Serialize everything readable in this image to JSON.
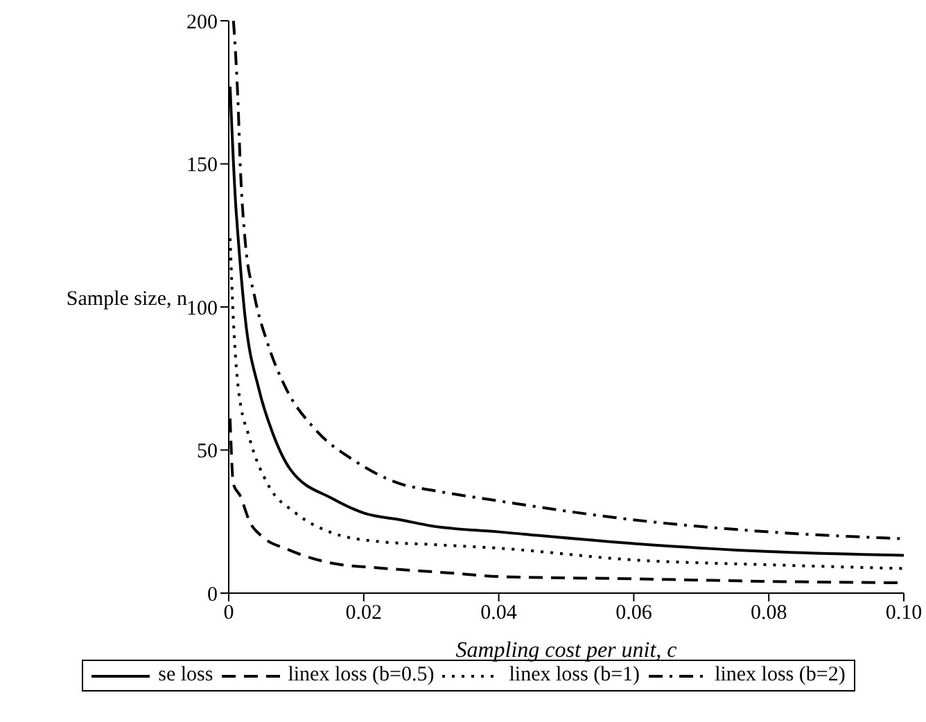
{
  "chart_data": {
    "type": "line",
    "xlabel": "Sampling cost per unit,  c",
    "ylabel": "Sample size, n",
    "xlim": [
      0,
      0.1
    ],
    "ylim": [
      0,
      200
    ],
    "xticks": [
      0,
      0.02,
      0.04,
      0.06,
      0.08,
      {
        "value": 0.1,
        "label": "0.10"
      }
    ],
    "yticks": [
      0,
      50,
      100,
      150,
      200
    ],
    "grid": false,
    "legend": "bottom",
    "marker": "none",
    "series": [
      {
        "name": "se loss",
        "color": "#000000",
        "line_style": "solid",
        "x": [
          0.0002,
          0.001,
          0.0014,
          0.0024,
          0.0045,
          0.0065,
          0.0092,
          0.0154,
          0.02,
          0.0257,
          0.03,
          0.04,
          0.06,
          0.08,
          0.1
        ],
        "values": [
          177,
          137,
          124,
          97,
          71,
          56,
          43,
          33,
          28,
          25.5,
          23.5,
          21.4,
          17.3,
          14.5,
          13.2
        ]
      },
      {
        "name": "linex loss (b=0.5)",
        "color": "#000000",
        "line_style": "dashed",
        "x": [
          0.0002,
          0.0007,
          0.0017,
          0.0031,
          0.0051,
          0.0086,
          0.0154,
          0.0223,
          0.0325,
          0.04,
          0.06,
          0.08,
          0.1
        ],
        "values": [
          61,
          38,
          34,
          25,
          19.5,
          15.4,
          10.4,
          8.8,
          7.1,
          5.8,
          5,
          4.1,
          3.6
        ]
      },
      {
        "name": "linex loss (b=1)",
        "color": "#000000",
        "line_style": "dotted",
        "x": [
          0.0002,
          0.0007,
          0.0014,
          0.0031,
          0.0058,
          0.0099,
          0.0154,
          0.0223,
          0.03,
          0.04,
          0.06,
          0.08,
          0.1
        ],
        "values": [
          124,
          95,
          72,
          54,
          38,
          28,
          21,
          18,
          17,
          15.7,
          11.6,
          9.9,
          8.6
        ]
      },
      {
        "name": "linex loss (b=2)",
        "color": "#000000",
        "line_style": "dashdot",
        "x": [
          0.0007,
          0.0014,
          0.0017,
          0.0024,
          0.0038,
          0.0058,
          0.0086,
          0.0127,
          0.0188,
          0.0257,
          0.03,
          0.04,
          0.06,
          0.08,
          0.1
        ],
        "values": [
          200,
          170,
          150,
          124,
          104,
          87,
          71,
          57.5,
          46,
          38,
          36,
          32.2,
          25.6,
          21.4,
          19
        ]
      }
    ]
  }
}
